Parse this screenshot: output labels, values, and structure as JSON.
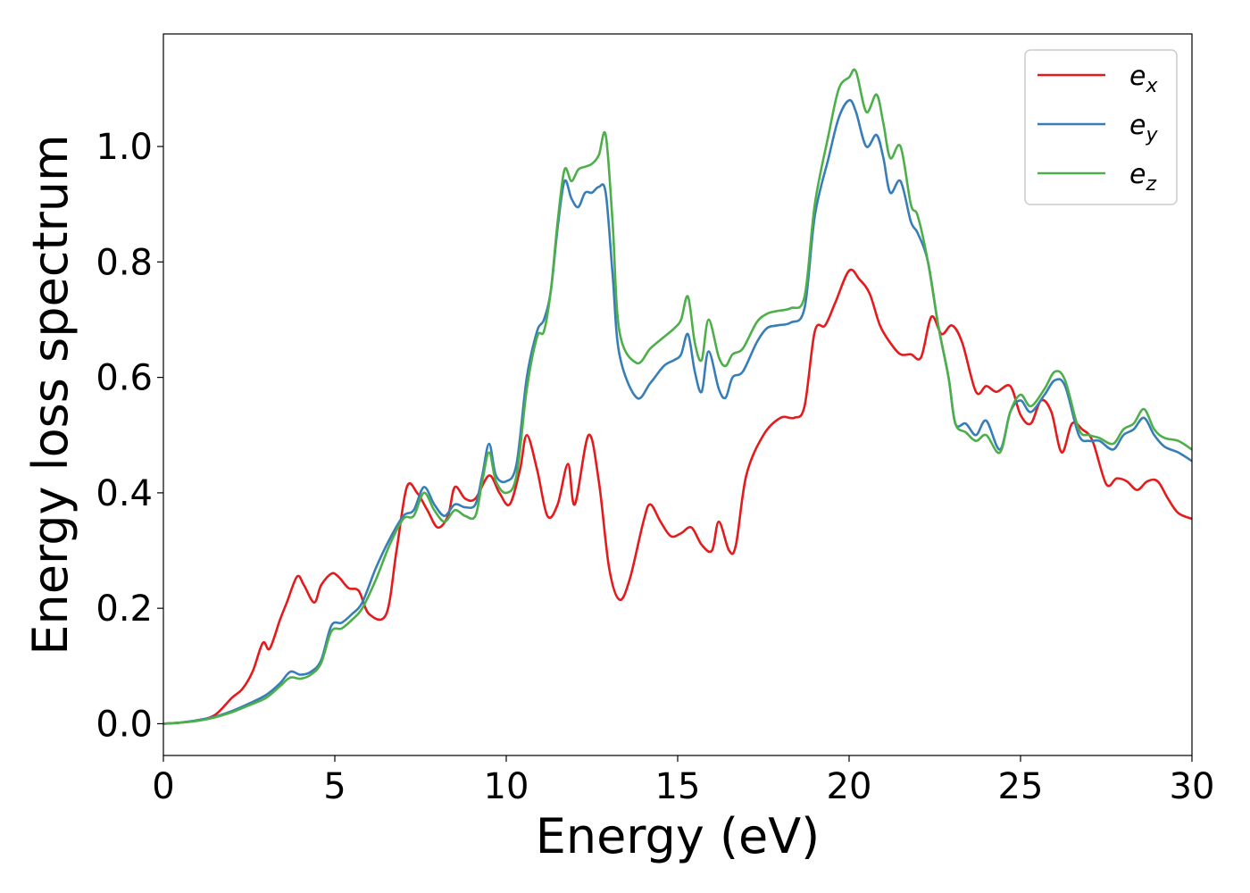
{
  "chart_data": {
    "type": "line",
    "xlabel": "Energy (eV)",
    "ylabel": "Energy loss spectrum",
    "xlim": [
      0,
      30
    ],
    "ylim": [
      -0.055,
      1.195
    ],
    "xticks": [
      0,
      5,
      10,
      15,
      20,
      25,
      30
    ],
    "xtick_labels": [
      "0",
      "5",
      "10",
      "15",
      "20",
      "25",
      "30"
    ],
    "yticks": [
      0.0,
      0.2,
      0.4,
      0.6,
      0.8,
      1.0
    ],
    "ytick_labels": [
      "0.0",
      "0.2",
      "0.4",
      "0.6",
      "0.8",
      "1.0"
    ],
    "grid": false,
    "legend_position": "top-right",
    "series": [
      {
        "name": "e",
        "sub": "x",
        "color": "#e41a1c",
        "x": [
          0,
          0.5,
          1.0,
          1.5,
          2.0,
          2.3,
          2.6,
          2.9,
          3.1,
          3.4,
          3.6,
          3.9,
          4.1,
          4.4,
          4.6,
          4.9,
          5.1,
          5.4,
          5.7,
          6.0,
          6.5,
          6.8,
          7.1,
          7.4,
          7.7,
          8.0,
          8.3,
          8.5,
          8.8,
          9.1,
          9.5,
          9.8,
          10.1,
          10.4,
          10.6,
          10.9,
          11.2,
          11.5,
          11.8,
          12.0,
          12.4,
          12.7,
          13.0,
          13.3,
          13.6,
          14.0,
          14.2,
          14.5,
          14.8,
          15.1,
          15.4,
          15.7,
          16.0,
          16.2,
          16.5,
          16.7,
          17.0,
          17.5,
          18.0,
          18.4,
          18.7,
          19.0,
          19.3,
          19.6,
          20.0,
          20.3,
          20.6,
          20.9,
          21.2,
          21.5,
          21.8,
          22.1,
          22.4,
          22.7,
          23.0,
          23.3,
          23.7,
          24.0,
          24.3,
          24.7,
          25.0,
          25.3,
          25.6,
          25.9,
          26.2,
          26.5,
          26.8,
          27.1,
          27.5,
          27.8,
          28.1,
          28.4,
          28.7,
          29.0,
          29.3,
          29.6,
          30.0
        ],
        "y": [
          0,
          0.002,
          0.006,
          0.015,
          0.045,
          0.06,
          0.09,
          0.14,
          0.13,
          0.18,
          0.21,
          0.255,
          0.24,
          0.21,
          0.24,
          0.26,
          0.255,
          0.235,
          0.23,
          0.19,
          0.19,
          0.3,
          0.41,
          0.4,
          0.37,
          0.34,
          0.36,
          0.41,
          0.39,
          0.39,
          0.43,
          0.4,
          0.38,
          0.44,
          0.5,
          0.44,
          0.36,
          0.38,
          0.45,
          0.38,
          0.5,
          0.42,
          0.27,
          0.215,
          0.25,
          0.35,
          0.38,
          0.35,
          0.325,
          0.33,
          0.34,
          0.31,
          0.3,
          0.35,
          0.3,
          0.31,
          0.43,
          0.5,
          0.53,
          0.53,
          0.55,
          0.68,
          0.69,
          0.73,
          0.785,
          0.77,
          0.745,
          0.69,
          0.66,
          0.64,
          0.64,
          0.635,
          0.705,
          0.675,
          0.69,
          0.66,
          0.575,
          0.585,
          0.575,
          0.585,
          0.535,
          0.52,
          0.56,
          0.54,
          0.47,
          0.52,
          0.51,
          0.49,
          0.415,
          0.425,
          0.42,
          0.405,
          0.42,
          0.42,
          0.39,
          0.365,
          0.355
        ]
      },
      {
        "name": "e",
        "sub": "y",
        "color": "#377eb8",
        "x": [
          0,
          0.5,
          1.0,
          1.5,
          2.0,
          2.5,
          3.0,
          3.4,
          3.7,
          4.0,
          4.3,
          4.6,
          4.9,
          5.2,
          5.5,
          5.8,
          6.2,
          6.6,
          7.0,
          7.3,
          7.6,
          7.9,
          8.2,
          8.5,
          8.8,
          9.1,
          9.3,
          9.5,
          9.7,
          10.0,
          10.3,
          10.6,
          10.9,
          11.1,
          11.3,
          11.5,
          11.7,
          11.9,
          12.1,
          12.3,
          12.5,
          12.7,
          12.9,
          13.1,
          13.3,
          13.8,
          14.2,
          14.6,
          14.9,
          15.1,
          15.3,
          15.5,
          15.7,
          15.9,
          16.2,
          16.4,
          16.6,
          16.9,
          17.3,
          17.6,
          17.9,
          18.3,
          18.7,
          19.0,
          19.4,
          19.7,
          20.0,
          20.2,
          20.5,
          20.8,
          21.0,
          21.2,
          21.5,
          21.8,
          22.0,
          22.3,
          22.6,
          22.9,
          23.1,
          23.4,
          23.7,
          24.0,
          24.4,
          24.7,
          25.0,
          25.3,
          25.7,
          26.0,
          26.3,
          26.7,
          27.0,
          27.3,
          27.7,
          28.0,
          28.3,
          28.6,
          28.9,
          29.2,
          29.6,
          30.0
        ],
        "y": [
          0,
          0.002,
          0.006,
          0.012,
          0.022,
          0.035,
          0.05,
          0.07,
          0.09,
          0.085,
          0.09,
          0.11,
          0.17,
          0.175,
          0.19,
          0.21,
          0.27,
          0.32,
          0.36,
          0.37,
          0.41,
          0.38,
          0.36,
          0.38,
          0.375,
          0.38,
          0.43,
          0.485,
          0.43,
          0.42,
          0.45,
          0.6,
          0.68,
          0.7,
          0.75,
          0.86,
          0.94,
          0.91,
          0.895,
          0.92,
          0.92,
          0.93,
          0.92,
          0.78,
          0.64,
          0.565,
          0.59,
          0.62,
          0.63,
          0.64,
          0.675,
          0.61,
          0.575,
          0.645,
          0.58,
          0.565,
          0.6,
          0.61,
          0.66,
          0.685,
          0.69,
          0.695,
          0.72,
          0.88,
          0.98,
          1.05,
          1.08,
          1.06,
          1.0,
          1.02,
          0.98,
          0.92,
          0.94,
          0.87,
          0.85,
          0.8,
          0.69,
          0.6,
          0.52,
          0.52,
          0.5,
          0.525,
          0.475,
          0.54,
          0.56,
          0.54,
          0.57,
          0.595,
          0.585,
          0.5,
          0.49,
          0.49,
          0.475,
          0.5,
          0.51,
          0.53,
          0.5,
          0.48,
          0.47,
          0.455
        ]
      },
      {
        "name": "e",
        "sub": "z",
        "color": "#4daf4a",
        "x": [
          0,
          0.5,
          1.0,
          1.5,
          2.0,
          2.5,
          3.0,
          3.4,
          3.7,
          4.0,
          4.3,
          4.6,
          4.9,
          5.2,
          5.5,
          5.8,
          6.2,
          6.6,
          7.0,
          7.3,
          7.6,
          7.9,
          8.2,
          8.5,
          8.8,
          9.1,
          9.3,
          9.5,
          9.7,
          10.0,
          10.3,
          10.6,
          10.9,
          11.1,
          11.3,
          11.5,
          11.7,
          11.9,
          12.1,
          12.3,
          12.5,
          12.7,
          12.9,
          13.1,
          13.3,
          13.8,
          14.2,
          14.6,
          14.9,
          15.1,
          15.3,
          15.5,
          15.7,
          15.9,
          16.2,
          16.4,
          16.6,
          16.9,
          17.3,
          17.6,
          17.9,
          18.3,
          18.7,
          19.0,
          19.4,
          19.7,
          20.0,
          20.2,
          20.5,
          20.8,
          21.0,
          21.2,
          21.5,
          21.8,
          22.0,
          22.3,
          22.6,
          22.9,
          23.1,
          23.4,
          23.7,
          24.0,
          24.4,
          24.7,
          25.0,
          25.3,
          25.7,
          26.0,
          26.3,
          26.7,
          27.0,
          27.3,
          27.7,
          28.0,
          28.3,
          28.6,
          28.9,
          29.2,
          29.6,
          30.0
        ],
        "y": [
          0,
          0.002,
          0.005,
          0.011,
          0.02,
          0.032,
          0.045,
          0.065,
          0.08,
          0.078,
          0.085,
          0.105,
          0.16,
          0.165,
          0.18,
          0.2,
          0.25,
          0.31,
          0.355,
          0.36,
          0.4,
          0.37,
          0.35,
          0.37,
          0.36,
          0.36,
          0.42,
          0.47,
          0.42,
          0.4,
          0.43,
          0.58,
          0.67,
          0.68,
          0.75,
          0.87,
          0.96,
          0.94,
          0.96,
          0.965,
          0.97,
          0.985,
          1.02,
          0.87,
          0.68,
          0.625,
          0.65,
          0.67,
          0.685,
          0.7,
          0.74,
          0.66,
          0.63,
          0.7,
          0.635,
          0.62,
          0.64,
          0.65,
          0.695,
          0.71,
          0.715,
          0.72,
          0.74,
          0.9,
          1.02,
          1.1,
          1.12,
          1.13,
          1.06,
          1.09,
          1.04,
          0.98,
          1.0,
          0.9,
          0.88,
          0.8,
          0.69,
          0.6,
          0.52,
          0.505,
          0.49,
          0.5,
          0.47,
          0.54,
          0.57,
          0.55,
          0.58,
          0.61,
          0.595,
          0.51,
          0.5,
          0.495,
          0.485,
          0.51,
          0.52,
          0.545,
          0.51,
          0.495,
          0.49,
          0.475
        ]
      }
    ]
  }
}
